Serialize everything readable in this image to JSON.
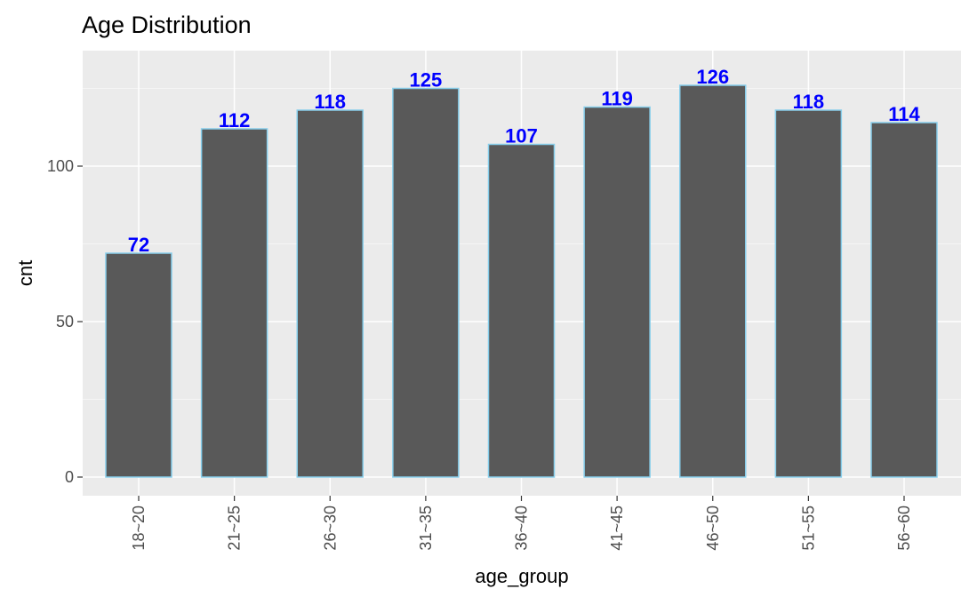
{
  "chart_data": {
    "type": "bar",
    "title": "Age Distribution",
    "xlabel": "age_group",
    "ylabel": "cnt",
    "categories": [
      "18~20",
      "21~25",
      "26~30",
      "31~35",
      "36~40",
      "41~45",
      "46~50",
      "51~55",
      "56~60"
    ],
    "values": [
      72,
      112,
      118,
      125,
      107,
      119,
      126,
      118,
      114
    ],
    "data_labels": [
      "72",
      "112",
      "118",
      "125",
      "107",
      "119",
      "126",
      "118",
      "114"
    ],
    "ylim": [
      0,
      132.3
    ],
    "y_ticks": [
      0,
      50,
      100
    ],
    "y_tick_labels": [
      "0",
      "50",
      "100"
    ],
    "grid": true,
    "legend": "none",
    "colors": {
      "panel_background": "#EBEBEB",
      "grid_major": "#FFFFFF",
      "grid_minor": "#F5F5F5",
      "bar_fill": "#595959",
      "bar_outline": "#87CEEB",
      "data_label": "#0000FF",
      "tick_mark": "#333333",
      "tick_label": "#4D4D4D"
    }
  }
}
